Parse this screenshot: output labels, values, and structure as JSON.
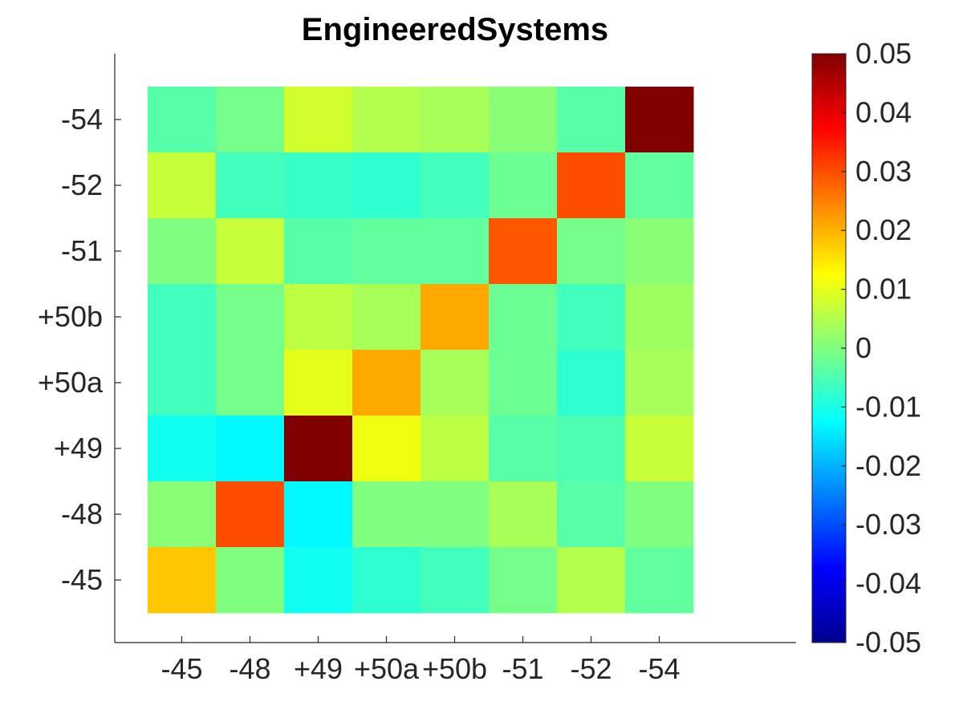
{
  "chart_data": {
    "type": "heatmap",
    "title": "EngineeredSystems",
    "xlabel": "",
    "ylabel": "",
    "x_categories": [
      "-45",
      "-48",
      "+49",
      "+50a",
      "+50b",
      "-51",
      "-52",
      "-54"
    ],
    "y_categories_top_to_bottom": [
      "-54",
      "-52",
      "-51",
      "+50b",
      "+50a",
      "+49",
      "-48",
      "-45"
    ],
    "values": [
      [
        -0.004,
        -0.001,
        0.008,
        0.005,
        0.004,
        0.001,
        -0.004,
        0.05
      ],
      [
        0.007,
        -0.006,
        -0.007,
        -0.008,
        -0.006,
        -0.002,
        0.03,
        -0.003
      ],
      [
        0.0,
        0.007,
        -0.004,
        -0.003,
        -0.003,
        0.029,
        -0.001,
        0.001
      ],
      [
        -0.006,
        -0.001,
        0.006,
        0.004,
        0.021,
        -0.002,
        -0.006,
        0.003
      ],
      [
        -0.006,
        -0.001,
        0.01,
        0.021,
        0.004,
        -0.002,
        -0.008,
        0.004
      ],
      [
        -0.011,
        -0.013,
        0.05,
        0.011,
        0.006,
        -0.004,
        -0.005,
        0.007
      ],
      [
        0.001,
        0.03,
        -0.013,
        0.0,
        0.0,
        0.004,
        -0.004,
        0.0
      ],
      [
        0.018,
        0.0,
        -0.011,
        -0.008,
        -0.006,
        -0.001,
        0.005,
        -0.003
      ]
    ],
    "colorbar": {
      "colormap": "jet",
      "range": [
        -0.05,
        0.05
      ],
      "ticks": [
        "0.05",
        "0.04",
        "0.03",
        "0.02",
        "0.01",
        "0",
        "-0.01",
        "-0.02",
        "-0.03",
        "-0.04",
        "-0.05"
      ]
    },
    "grid": false,
    "colorbar_position": "right"
  }
}
